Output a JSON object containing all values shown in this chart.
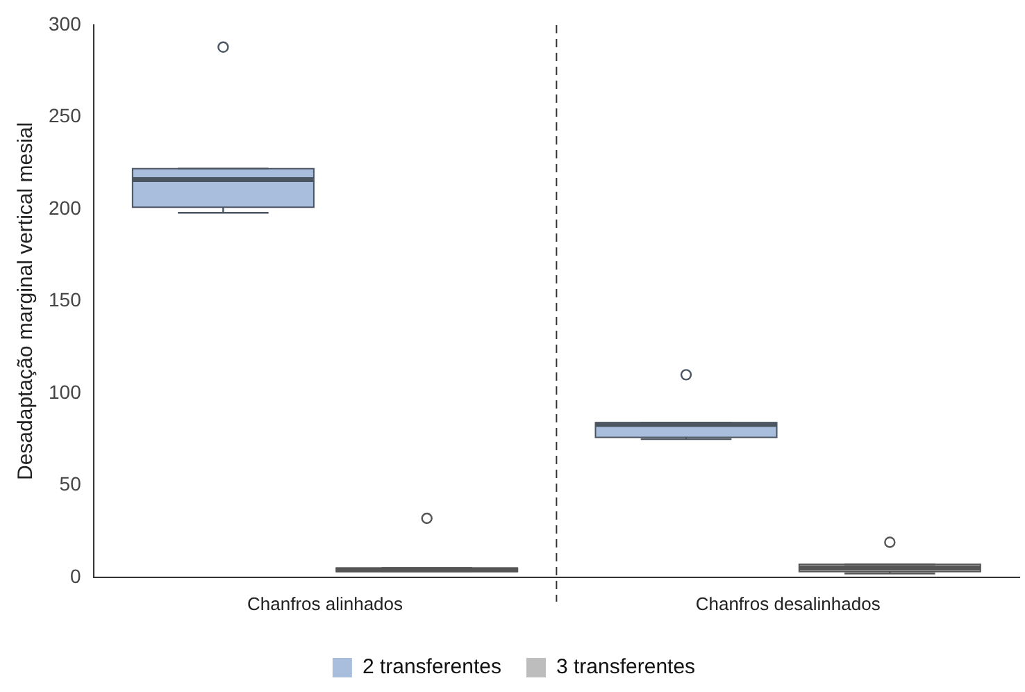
{
  "chart_data": {
    "type": "box",
    "ylabel": "Desadaptação marginal vertical mesial",
    "categories": [
      "Chanfros alinhados",
      "Chanfros desalinhados"
    ],
    "ylim": [
      0,
      300
    ],
    "yticks": [
      0,
      50,
      100,
      150,
      200,
      250,
      300
    ],
    "grid": false,
    "legend": "bottom",
    "series": [
      {
        "name": "2 transferentes",
        "color": "#a8bedc",
        "boxes": [
          {
            "low": 198,
            "q1": 201,
            "median": 216,
            "q3": 222,
            "high": 222,
            "outliers": [
              288
            ]
          },
          {
            "low": 75,
            "q1": 76,
            "median": 83,
            "q3": 84,
            "high": 84,
            "outliers": [
              110
            ]
          }
        ]
      },
      {
        "name": "3 transferentes",
        "color": "#bdbdbd",
        "boxes": [
          {
            "low": 3,
            "q1": 3,
            "median": 4,
            "q3": 5,
            "high": 5,
            "outliers": [
              32
            ]
          },
          {
            "low": 2,
            "q1": 3,
            "median": 5,
            "q3": 7,
            "high": 7,
            "outliers": [
              19
            ]
          }
        ]
      }
    ]
  }
}
